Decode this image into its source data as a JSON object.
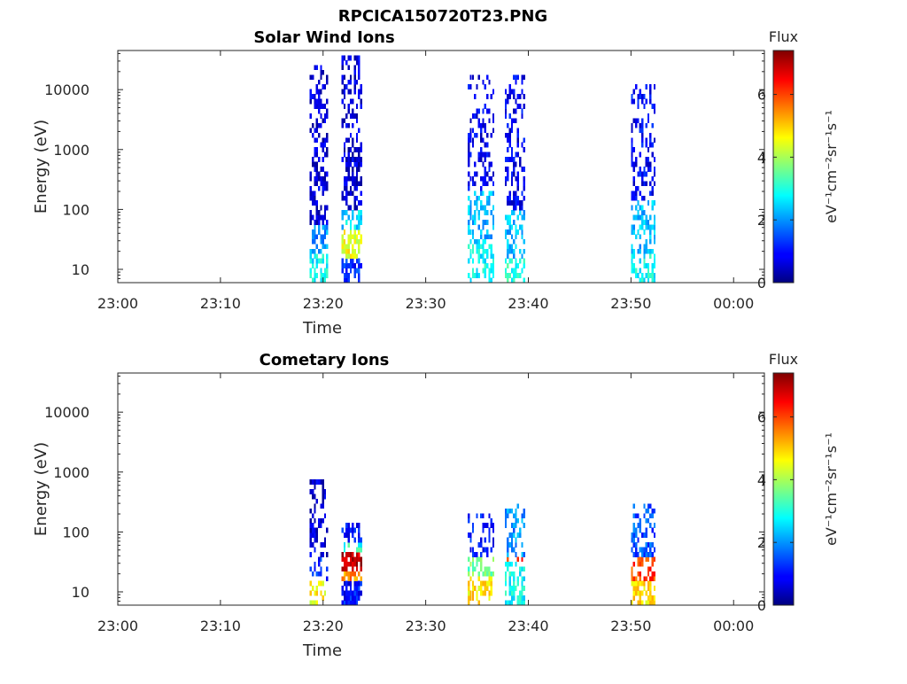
{
  "figure": {
    "title": "RPCICA150720T23.PNG"
  },
  "chart_data": [
    {
      "type": "heatmap",
      "title": "Solar Wind Ions",
      "xlabel": "Time",
      "ylabel": "Energy (eV)",
      "x_ticks": [
        "23:00",
        "23:10",
        "23:20",
        "23:30",
        "23:40",
        "23:50",
        "00:00"
      ],
      "x_range_minutes": [
        0,
        63
      ],
      "y_scale": "log",
      "y_ticks": [
        10,
        100,
        1000,
        10000
      ],
      "y_tick_labels": [
        "10",
        "100",
        "1000",
        "10000"
      ],
      "y_range": [
        6,
        45000
      ],
      "colorbar": {
        "label": "Flux",
        "unit_label": "eV⁻¹cm⁻²sr⁻¹s⁻¹",
        "range": [
          0,
          7.4
        ],
        "ticks": [
          "0",
          "2",
          "4",
          "6"
        ],
        "colormap": "jet"
      },
      "bursts": [
        {
          "t_start": 18.7,
          "t_end": 20.4,
          "e_min": 6,
          "e_max": 27000,
          "levels": [
            [
              20,
              2.8
            ],
            [
              60,
              2.0
            ],
            [
              1000000,
              0.6
            ]
          ],
          "density": 0.55
        },
        {
          "t_start": 21.8,
          "t_end": 23.7,
          "e_min": 6,
          "e_max": 36000,
          "levels": [
            [
              15,
              1.2
            ],
            [
              50,
              4.5
            ],
            [
              100,
              2.5
            ],
            [
              1000000,
              0.6
            ]
          ],
          "density": 0.6
        },
        {
          "t_start": 34.1,
          "t_end": 36.6,
          "e_min": 6,
          "e_max": 19000,
          "levels": [
            [
              25,
              2.8
            ],
            [
              200,
              2.3
            ],
            [
              1000000,
              0.8
            ]
          ],
          "density": 0.5
        },
        {
          "t_start": 37.7,
          "t_end": 39.6,
          "e_min": 6,
          "e_max": 19000,
          "levels": [
            [
              15,
              3.0
            ],
            [
              100,
              2.3
            ],
            [
              1000000,
              0.8
            ]
          ],
          "density": 0.5
        },
        {
          "t_start": 50.0,
          "t_end": 52.4,
          "e_min": 6,
          "e_max": 13000,
          "levels": [
            [
              20,
              2.8
            ],
            [
              150,
              2.3
            ],
            [
              1000000,
              0.9
            ]
          ],
          "density": 0.5
        }
      ]
    },
    {
      "type": "heatmap",
      "title": "Cometary Ions",
      "xlabel": "Time",
      "ylabel": "Energy (eV)",
      "x_ticks": [
        "23:00",
        "23:10",
        "23:20",
        "23:30",
        "23:40",
        "23:50",
        "00:00"
      ],
      "x_range_minutes": [
        0,
        63
      ],
      "y_scale": "log",
      "y_ticks": [
        10,
        100,
        1000,
        10000
      ],
      "y_tick_labels": [
        "10",
        "100",
        "1000",
        "10000"
      ],
      "y_range": [
        6,
        45000
      ],
      "colorbar": {
        "label": "Flux",
        "unit_label": "eV⁻¹cm⁻²sr⁻¹s⁻¹",
        "range": [
          0,
          7.4
        ],
        "ticks": [
          "0",
          "2",
          "4",
          "6"
        ],
        "colormap": "jet"
      },
      "bursts": [
        {
          "t_start": 18.7,
          "t_end": 20.4,
          "e_min": 6,
          "e_max": 800,
          "levels": [
            [
              16,
              4.6
            ],
            [
              40,
              1.2
            ],
            [
              1000000,
              0.6
            ]
          ],
          "density": 0.45
        },
        {
          "t_start": 21.8,
          "t_end": 23.7,
          "e_min": 6,
          "e_max": 130,
          "levels": [
            [
              15,
              1.0
            ],
            [
              22,
              5.5
            ],
            [
              45,
              7.0
            ],
            [
              70,
              3.0
            ],
            [
              1000000,
              1.0
            ]
          ],
          "density": 0.75
        },
        {
          "t_start": 34.1,
          "t_end": 36.6,
          "e_min": 6,
          "e_max": 200,
          "levels": [
            [
              20,
              4.8
            ],
            [
              40,
              3.6
            ],
            [
              1000000,
              1.0
            ]
          ],
          "density": 0.5
        },
        {
          "t_start": 37.7,
          "t_end": 39.6,
          "e_min": 6,
          "e_max": 280,
          "levels": [
            [
              30,
              2.8
            ],
            [
              40,
              6.0
            ],
            [
              1000000,
              2.0
            ]
          ],
          "density": 0.5
        },
        {
          "t_start": 50.0,
          "t_end": 52.4,
          "e_min": 6,
          "e_max": 280,
          "levels": [
            [
              15,
              4.8
            ],
            [
              40,
              6.0
            ],
            [
              1000000,
              1.5
            ]
          ],
          "density": 0.55
        }
      ]
    }
  ]
}
